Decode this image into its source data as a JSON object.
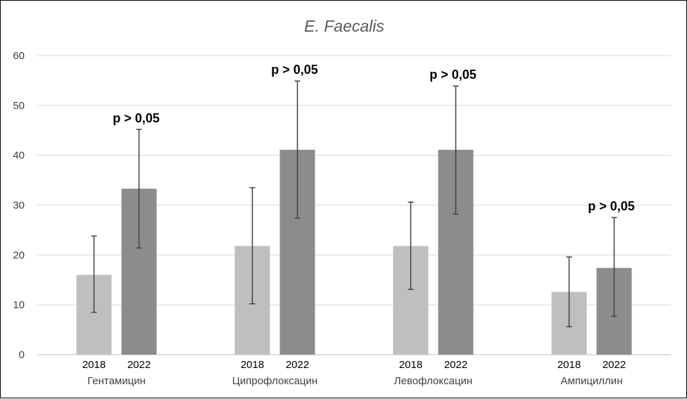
{
  "chart_data": {
    "type": "bar",
    "title": "E. Faecalis",
    "ylim": [
      0,
      60
    ],
    "yticks": [
      0,
      10,
      20,
      30,
      40,
      50,
      60
    ],
    "grid": true,
    "categories": [
      "Гентамицин",
      "Ципрофлоксацин",
      "Левофлоксацин",
      "Ампициллин"
    ],
    "series_labels": [
      "2018",
      "2022"
    ],
    "colors": {
      "2018": "#bfbfbf",
      "2022": "#8c8c8c",
      "error_bar": "#404040",
      "grid": "#d9d9d9"
    },
    "series": [
      {
        "values": [
          16,
          21.8,
          21.8,
          12.6
        ],
        "error_low": [
          8.5,
          10.2,
          13.1,
          5.6
        ],
        "error_high": [
          23.8,
          33.5,
          30.6,
          19.6
        ]
      },
      {
        "values": [
          33.3,
          41.1,
          41.1,
          17.4
        ],
        "error_low": [
          21.4,
          27.4,
          28.2,
          7.7
        ],
        "error_high": [
          45.2,
          54.9,
          53.9,
          27.5
        ]
      }
    ],
    "annotations": [
      "p > 0,05",
      "p > 0,05",
      "p > 0,05",
      "p > 0,05"
    ]
  }
}
